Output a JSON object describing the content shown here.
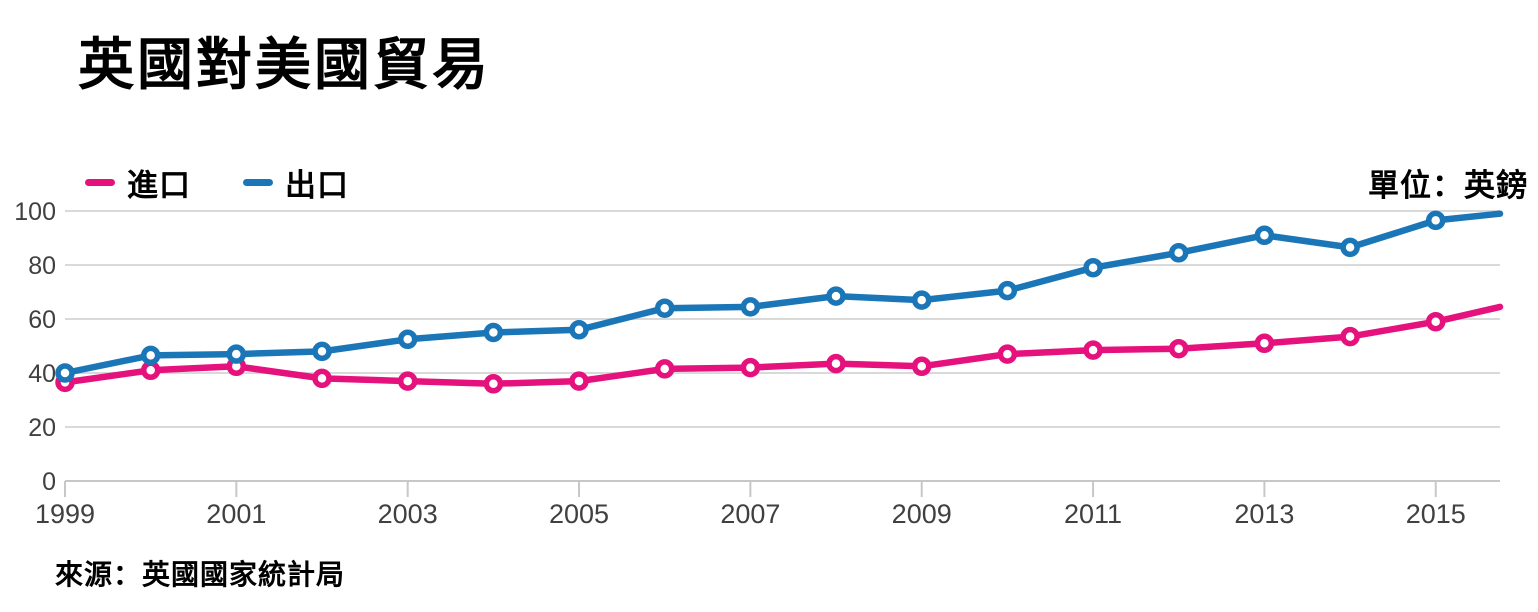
{
  "title": "英國對美國貿易",
  "unit_label": "單位：英鎊",
  "source": "來源：英國國家統計局",
  "colors": {
    "imports": "#e5127d",
    "exports": "#1b76b8",
    "grid": "#d9d9d9",
    "axis": "#c7c7c7",
    "axis_text": "#404040",
    "title_text": "#000000",
    "background": "#ffffff"
  },
  "chart_data": {
    "type": "line",
    "title": "英國對美國貿易",
    "unit": "英鎊",
    "xlabel": "",
    "ylabel": "",
    "x_years": [
      1999,
      2000,
      2001,
      2002,
      2003,
      2004,
      2005,
      2006,
      2007,
      2008,
      2009,
      2010,
      2011,
      2012,
      2013,
      2014,
      2015
    ],
    "x_end": 2015.75,
    "xticks": [
      1999,
      2001,
      2003,
      2005,
      2007,
      2009,
      2011,
      2013,
      2015
    ],
    "yticks": [
      0,
      20,
      40,
      60,
      80,
      100
    ],
    "ylim": [
      0,
      100
    ],
    "grid": true,
    "legend_position": "top-left",
    "marker": "circle-open",
    "series": [
      {
        "name": "進口",
        "key": "imports",
        "color": "#e5127d",
        "values": [
          36.5,
          41,
          42.5,
          38,
          37,
          36,
          37,
          41.5,
          42,
          43.5,
          42.5,
          47,
          48.5,
          49,
          51,
          53.5,
          59
        ],
        "end_value": 64.5
      },
      {
        "name": "出口",
        "key": "exports",
        "color": "#1b76b8",
        "values": [
          40,
          46.5,
          47,
          48,
          52.5,
          55,
          56,
          64,
          64.5,
          68.5,
          67,
          70.5,
          79,
          84.5,
          91,
          86.5,
          96.5
        ],
        "end_value": 99
      }
    ]
  }
}
